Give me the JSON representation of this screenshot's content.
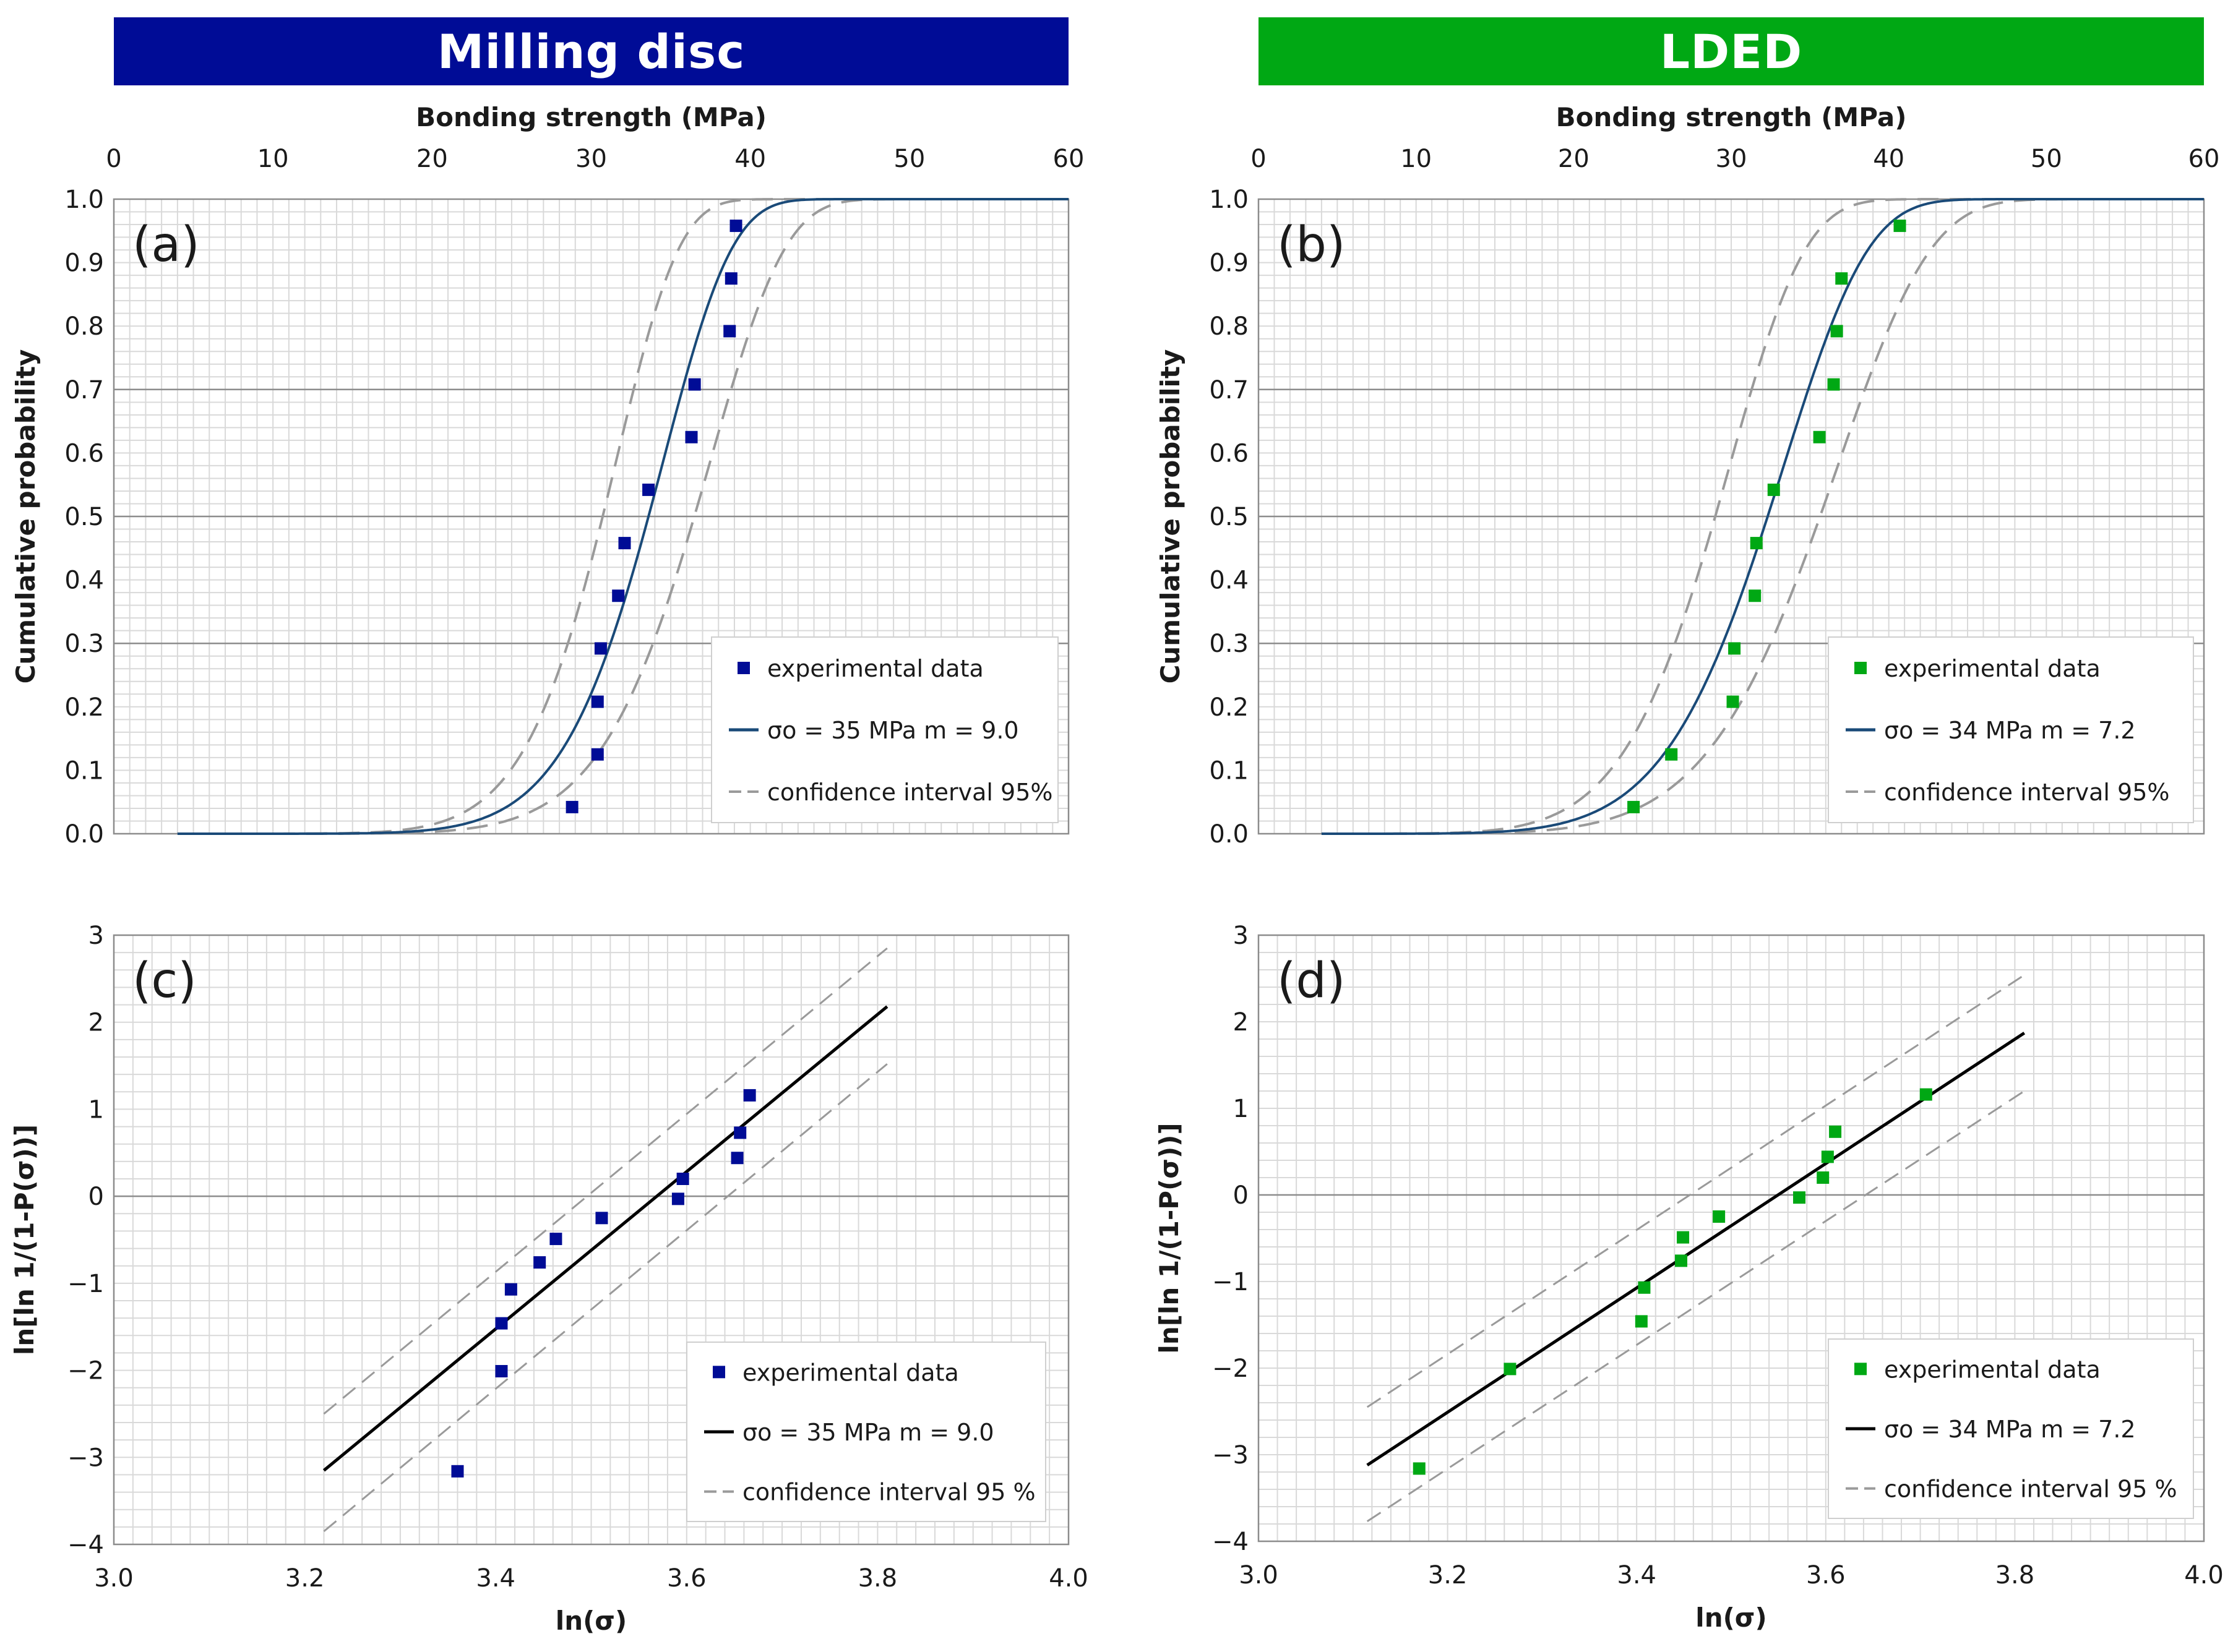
{
  "banners": {
    "left": "Milling disc",
    "right": "LDED"
  },
  "colors": {
    "milling": "#000c96",
    "lded": "#00a814",
    "curve_top": "#1a4a78",
    "curve_bottom": "#000000",
    "dash": "#9a9a9a",
    "grid_minor": "#d9d9d9",
    "grid_major": "#8c8c8c"
  },
  "chart_data": [
    {
      "id": "a",
      "panel_label": "(a)",
      "type": "scatter",
      "title": "",
      "xlabel": "Bonding strength (MPa)",
      "ylabel": "Cumulative probability",
      "xlim": [
        0,
        60
      ],
      "ylim": [
        0,
        1
      ],
      "xticks": [
        "0",
        "10",
        "20",
        "30",
        "40",
        "50",
        "60"
      ],
      "yticks": [
        "0.0",
        "0.1",
        "0.2",
        "0.3",
        "0.4",
        "0.5",
        "0.6",
        "0.7",
        "0.8",
        "0.9",
        "1.0"
      ],
      "marker_color": "#000c96",
      "weibull": {
        "sigma0": 35,
        "m": 9.0,
        "ci_low": 32,
        "ci_high": 38
      },
      "series": [
        {
          "name": "experimental data",
          "x": [
            28.8,
            30.4,
            30.4,
            30.6,
            31.7,
            32.1,
            33.6,
            36.3,
            36.5,
            38.7,
            38.8,
            39.1
          ],
          "y": [
            0.042,
            0.125,
            0.208,
            0.292,
            0.375,
            0.458,
            0.542,
            0.625,
            0.708,
            0.792,
            0.875,
            0.958
          ]
        },
        {
          "name": "σo = 35 MPa      m = 9.0"
        },
        {
          "name": "confidence interval 95%"
        }
      ]
    },
    {
      "id": "b",
      "panel_label": "(b)",
      "type": "scatter",
      "title": "",
      "xlabel": "Bonding strength (MPa)",
      "ylabel": "Cumulative probability",
      "xlim": [
        0,
        60
      ],
      "ylim": [
        0,
        1
      ],
      "xticks": [
        "0",
        "10",
        "20",
        "30",
        "40",
        "50",
        "60"
      ],
      "yticks": [
        "0.0",
        "0.1",
        "0.2",
        "0.3",
        "0.4",
        "0.5",
        "0.6",
        "0.7",
        "0.8",
        "0.9",
        "1.0"
      ],
      "marker_color": "#00a814",
      "weibull": {
        "sigma0": 34,
        "m": 7.2,
        "ci_low": 30.5,
        "ci_high": 37.5
      },
      "series": [
        {
          "name": "experimental data",
          "x": [
            23.8,
            26.2,
            30.1,
            30.2,
            31.5,
            31.6,
            32.7,
            35.6,
            36.5,
            36.7,
            37.0,
            40.7
          ],
          "y": [
            0.042,
            0.125,
            0.208,
            0.292,
            0.375,
            0.458,
            0.542,
            0.625,
            0.708,
            0.792,
            0.875,
            0.958
          ]
        },
        {
          "name": "σo = 34 MPa      m = 7.2"
        },
        {
          "name": "confidence interval 95%"
        }
      ]
    },
    {
      "id": "c",
      "panel_label": "(c)",
      "type": "scatter",
      "title": "",
      "xlabel": "ln(σ)",
      "ylabel": "ln[ln 1/(1-P(σ))]",
      "xlim": [
        3.0,
        4.0
      ],
      "ylim": [
        -4,
        3
      ],
      "xticks": [
        "3.0",
        "3.2",
        "3.4",
        "3.6",
        "3.8",
        "4.0"
      ],
      "yticks": [
        "−4",
        "−3",
        "−2",
        "−1",
        "0",
        "1",
        "2",
        "3"
      ],
      "marker_color": "#000c96",
      "fit_line": {
        "x": [
          3.22,
          3.81
        ],
        "y": [
          -3.15,
          2.18
        ]
      },
      "ci_upper": {
        "x": [
          3.22,
          3.81
        ],
        "y": [
          -2.5,
          2.85
        ]
      },
      "ci_lower": {
        "x": [
          3.22,
          3.81
        ],
        "y": [
          -3.85,
          1.52
        ]
      },
      "series": [
        {
          "name": "experimental data",
          "x": [
            3.36,
            3.406,
            3.406,
            3.416,
            3.446,
            3.463,
            3.511,
            3.591,
            3.596,
            3.653,
            3.656,
            3.666
          ],
          "y": [
            -3.16,
            -2.01,
            -1.46,
            -1.07,
            -0.76,
            -0.49,
            -0.25,
            -0.03,
            0.2,
            0.44,
            0.73,
            1.16
          ]
        },
        {
          "name": "σo = 35 MPa      m = 9.0"
        },
        {
          "name": "confidence interval 95 %"
        }
      ]
    },
    {
      "id": "d",
      "panel_label": "(d)",
      "type": "scatter",
      "title": "",
      "xlabel": "ln(σ)",
      "ylabel": "ln[ln 1/(1-P(σ))]",
      "xlim": [
        3.0,
        4.0
      ],
      "ylim": [
        -4,
        3
      ],
      "xticks": [
        "3.0",
        "3.2",
        "3.4",
        "3.6",
        "3.8",
        "4.0"
      ],
      "yticks": [
        "−4",
        "−3",
        "−2",
        "−1",
        "0",
        "1",
        "2",
        "3"
      ],
      "marker_color": "#00a814",
      "fit_line": {
        "x": [
          3.115,
          3.81
        ],
        "y": [
          -3.12,
          1.87
        ]
      },
      "ci_upper": {
        "x": [
          3.115,
          3.81
        ],
        "y": [
          -2.45,
          2.54
        ]
      },
      "ci_lower": {
        "x": [
          3.115,
          3.81
        ],
        "y": [
          -3.77,
          1.2
        ]
      },
      "series": [
        {
          "name": "experimental data",
          "x": [
            3.17,
            3.266,
            3.405,
            3.408,
            3.447,
            3.449,
            3.487,
            3.572,
            3.597,
            3.602,
            3.61,
            3.706
          ],
          "y": [
            -3.16,
            -2.01,
            -1.46,
            -1.07,
            -0.76,
            -0.49,
            -0.25,
            -0.03,
            0.2,
            0.44,
            0.73,
            1.16
          ]
        },
        {
          "name": "σo = 34 MPa      m = 7.2"
        },
        {
          "name": "confidence interval 95 %"
        }
      ]
    }
  ]
}
